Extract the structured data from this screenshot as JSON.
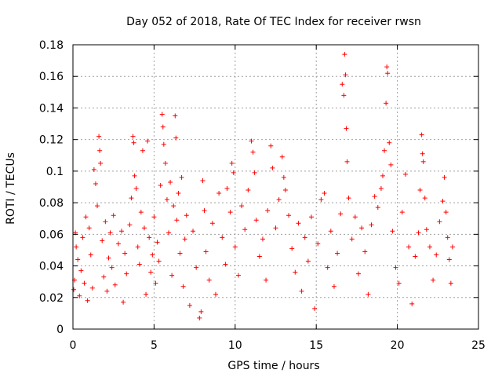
{
  "chart_data": {
    "type": "scatter",
    "title": "Day 052 of 2018, Rate Of TEC Index for receiver rwsn",
    "xlabel": "GPS time / hours",
    "ylabel": "ROTI / TECUs",
    "xlim": [
      0,
      25
    ],
    "ylim": [
      0,
      0.18
    ],
    "xticks": [
      0,
      5,
      10,
      15,
      20,
      25
    ],
    "xtick_labels": [
      "0",
      "5",
      "10",
      "15",
      "20",
      "25"
    ],
    "yticks": [
      0,
      0.02,
      0.04,
      0.06,
      0.08,
      0.1,
      0.12,
      0.14,
      0.16,
      0.18
    ],
    "ytick_labels": [
      "0",
      "0.02",
      "0.04",
      "0.06",
      "0.08",
      "0.1",
      "0.12",
      "0.14",
      "0.16",
      "0.18"
    ],
    "grid": true,
    "marker": "plus",
    "color": "#ff0000",
    "series": [
      {
        "name": "",
        "points": [
          [
            0.05,
            0.025
          ],
          [
            0.1,
            0.031
          ],
          [
            0.15,
            0.061
          ],
          [
            0.2,
            0.052
          ],
          [
            0.3,
            0.044
          ],
          [
            0.4,
            0.021
          ],
          [
            0.5,
            0.037
          ],
          [
            0.6,
            0.058
          ],
          [
            0.7,
            0.029
          ],
          [
            0.8,
            0.071
          ],
          [
            0.9,
            0.018
          ],
          [
            1.0,
            0.064
          ],
          [
            1.1,
            0.047
          ],
          [
            1.2,
            0.026
          ],
          [
            1.3,
            0.101
          ],
          [
            1.4,
            0.092
          ],
          [
            1.5,
            0.078
          ],
          [
            1.6,
            0.122
          ],
          [
            1.65,
            0.113
          ],
          [
            1.7,
            0.105
          ],
          [
            1.8,
            0.056
          ],
          [
            1.9,
            0.033
          ],
          [
            2.0,
            0.068
          ],
          [
            2.1,
            0.024
          ],
          [
            2.2,
            0.045
          ],
          [
            2.3,
            0.061
          ],
          [
            2.4,
            0.039
          ],
          [
            2.5,
            0.072
          ],
          [
            2.6,
            0.028
          ],
          [
            2.8,
            0.054
          ],
          [
            3.0,
            0.062
          ],
          [
            3.1,
            0.017
          ],
          [
            3.2,
            0.048
          ],
          [
            3.3,
            0.035
          ],
          [
            3.5,
            0.066
          ],
          [
            3.6,
            0.083
          ],
          [
            3.7,
            0.122
          ],
          [
            3.75,
            0.118
          ],
          [
            3.8,
            0.097
          ],
          [
            3.9,
            0.089
          ],
          [
            4.0,
            0.052
          ],
          [
            4.1,
            0.041
          ],
          [
            4.2,
            0.074
          ],
          [
            4.3,
            0.113
          ],
          [
            4.4,
            0.064
          ],
          [
            4.5,
            0.022
          ],
          [
            4.6,
            0.119
          ],
          [
            4.7,
            0.058
          ],
          [
            4.8,
            0.036
          ],
          [
            4.9,
            0.047
          ],
          [
            5.0,
            0.071
          ],
          [
            5.1,
            0.029
          ],
          [
            5.2,
            0.055
          ],
          [
            5.3,
            0.043
          ],
          [
            5.4,
            0.091
          ],
          [
            5.5,
            0.136
          ],
          [
            5.55,
            0.128
          ],
          [
            5.6,
            0.117
          ],
          [
            5.7,
            0.105
          ],
          [
            5.8,
            0.082
          ],
          [
            5.9,
            0.061
          ],
          [
            6.0,
            0.093
          ],
          [
            6.1,
            0.034
          ],
          [
            6.2,
            0.078
          ],
          [
            6.3,
            0.135
          ],
          [
            6.35,
            0.121
          ],
          [
            6.4,
            0.069
          ],
          [
            6.5,
            0.086
          ],
          [
            6.6,
            0.048
          ],
          [
            6.7,
            0.096
          ],
          [
            6.8,
            0.027
          ],
          [
            6.9,
            0.057
          ],
          [
            7.0,
            0.072
          ],
          [
            7.2,
            0.015
          ],
          [
            7.4,
            0.062
          ],
          [
            7.6,
            0.039
          ],
          [
            7.8,
            0.007
          ],
          [
            7.9,
            0.011
          ],
          [
            8.0,
            0.094
          ],
          [
            8.1,
            0.075
          ],
          [
            8.2,
            0.049
          ],
          [
            8.4,
            0.031
          ],
          [
            8.6,
            0.067
          ],
          [
            8.8,
            0.022
          ],
          [
            9.0,
            0.086
          ],
          [
            9.2,
            0.058
          ],
          [
            9.4,
            0.041
          ],
          [
            9.5,
            0.089
          ],
          [
            9.7,
            0.074
          ],
          [
            9.8,
            0.105
          ],
          [
            9.9,
            0.099
          ],
          [
            10.0,
            0.052
          ],
          [
            10.2,
            0.034
          ],
          [
            10.4,
            0.078
          ],
          [
            10.6,
            0.063
          ],
          [
            10.8,
            0.088
          ],
          [
            11.0,
            0.119
          ],
          [
            11.1,
            0.112
          ],
          [
            11.2,
            0.099
          ],
          [
            11.3,
            0.069
          ],
          [
            11.5,
            0.046
          ],
          [
            11.7,
            0.057
          ],
          [
            11.9,
            0.031
          ],
          [
            12.0,
            0.075
          ],
          [
            12.2,
            0.116
          ],
          [
            12.3,
            0.102
          ],
          [
            12.5,
            0.064
          ],
          [
            12.7,
            0.082
          ],
          [
            12.9,
            0.109
          ],
          [
            13.0,
            0.096
          ],
          [
            13.1,
            0.088
          ],
          [
            13.3,
            0.072
          ],
          [
            13.5,
            0.051
          ],
          [
            13.7,
            0.036
          ],
          [
            13.9,
            0.067
          ],
          [
            14.1,
            0.024
          ],
          [
            14.3,
            0.058
          ],
          [
            14.5,
            0.043
          ],
          [
            14.7,
            0.071
          ],
          [
            14.9,
            0.013
          ],
          [
            15.1,
            0.054
          ],
          [
            15.3,
            0.082
          ],
          [
            15.5,
            0.086
          ],
          [
            15.7,
            0.039
          ],
          [
            15.9,
            0.062
          ],
          [
            16.1,
            0.027
          ],
          [
            16.3,
            0.048
          ],
          [
            16.5,
            0.073
          ],
          [
            16.6,
            0.155
          ],
          [
            16.7,
            0.148
          ],
          [
            16.75,
            0.174
          ],
          [
            16.8,
            0.161
          ],
          [
            16.85,
            0.127
          ],
          [
            16.9,
            0.106
          ],
          [
            17.0,
            0.083
          ],
          [
            17.2,
            0.057
          ],
          [
            17.4,
            0.071
          ],
          [
            17.6,
            0.035
          ],
          [
            17.8,
            0.064
          ],
          [
            18.0,
            0.049
          ],
          [
            18.2,
            0.022
          ],
          [
            18.4,
            0.066
          ],
          [
            18.6,
            0.084
          ],
          [
            18.8,
            0.077
          ],
          [
            19.0,
            0.089
          ],
          [
            19.1,
            0.097
          ],
          [
            19.2,
            0.113
          ],
          [
            19.3,
            0.143
          ],
          [
            19.35,
            0.166
          ],
          [
            19.4,
            0.162
          ],
          [
            19.5,
            0.118
          ],
          [
            19.6,
            0.104
          ],
          [
            19.7,
            0.062
          ],
          [
            19.9,
            0.039
          ],
          [
            20.1,
            0.029
          ],
          [
            20.3,
            0.074
          ],
          [
            20.5,
            0.098
          ],
          [
            20.7,
            0.052
          ],
          [
            20.9,
            0.016
          ],
          [
            21.1,
            0.046
          ],
          [
            21.3,
            0.061
          ],
          [
            21.4,
            0.088
          ],
          [
            21.5,
            0.123
          ],
          [
            21.55,
            0.111
          ],
          [
            21.6,
            0.106
          ],
          [
            21.7,
            0.083
          ],
          [
            21.8,
            0.063
          ],
          [
            22.0,
            0.052
          ],
          [
            22.2,
            0.031
          ],
          [
            22.4,
            0.047
          ],
          [
            22.6,
            0.068
          ],
          [
            22.8,
            0.081
          ],
          [
            22.9,
            0.096
          ],
          [
            23.0,
            0.074
          ],
          [
            23.1,
            0.058
          ],
          [
            23.2,
            0.044
          ],
          [
            23.3,
            0.029
          ],
          [
            23.4,
            0.052
          ]
        ]
      }
    ]
  }
}
